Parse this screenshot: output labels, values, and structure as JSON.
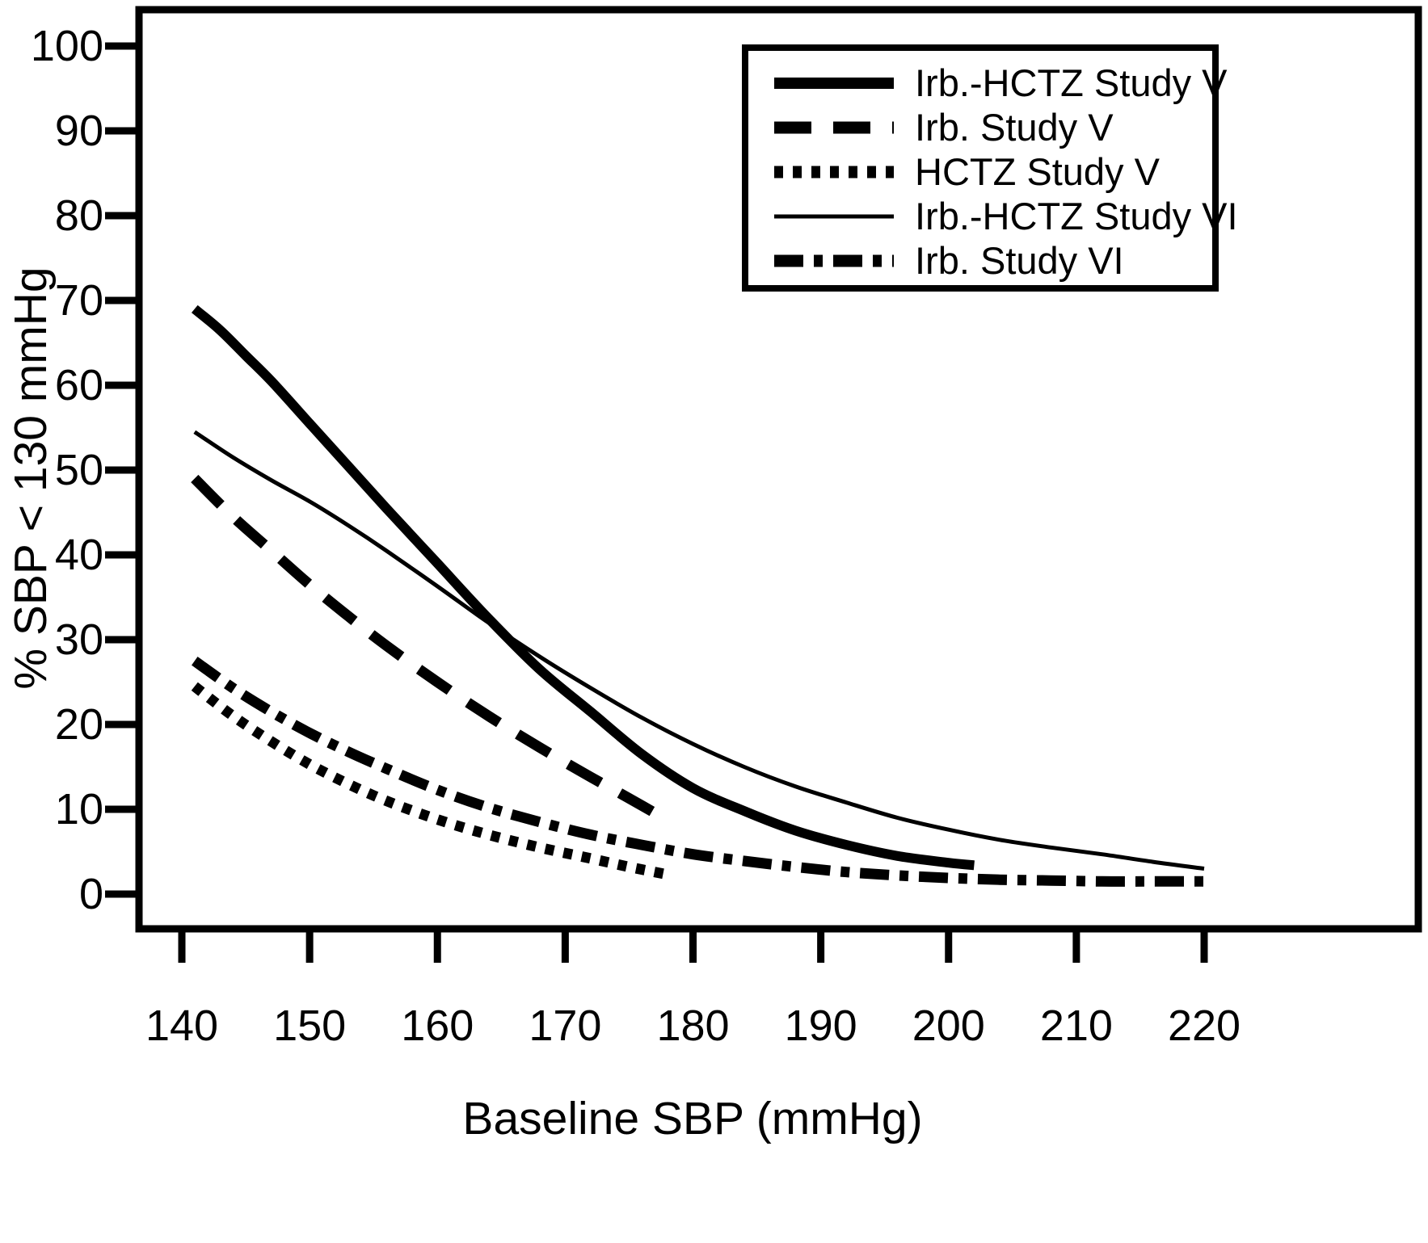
{
  "chart_data": {
    "type": "line",
    "title": "",
    "xlabel": "Baseline SBP (mmHg)",
    "ylabel": "% SBP < 130 mmHg",
    "xlim": [
      140,
      220
    ],
    "ylim": [
      0,
      100
    ],
    "x_ticks": [
      140,
      150,
      160,
      170,
      180,
      190,
      200,
      210,
      220
    ],
    "y_ticks": [
      0,
      10,
      20,
      30,
      40,
      50,
      60,
      70,
      80,
      90,
      100
    ],
    "grid": false,
    "legend_position": "top-right",
    "line_color": "#000000",
    "series": [
      {
        "name": "Irb.-HCTZ Study V",
        "style": "solid-thick",
        "x": [
          141,
          143,
          145,
          147,
          150,
          153,
          156,
          160,
          164,
          168,
          172,
          176,
          180,
          184,
          188,
          192,
          196,
          200,
          202
        ],
        "y": [
          69,
          66.5,
          63.5,
          60.5,
          55.5,
          50.5,
          45.5,
          39,
          32.5,
          26.5,
          21.5,
          16.5,
          12.5,
          9.8,
          7.5,
          5.8,
          4.5,
          3.7,
          3.4
        ]
      },
      {
        "name": "Irb. Study V",
        "style": "dashed-thick",
        "x": [
          141,
          144,
          147,
          150,
          153,
          156,
          160,
          164,
          168,
          172,
          175,
          178
        ],
        "y": [
          49,
          44.5,
          40.5,
          36.5,
          32.8,
          29.3,
          25,
          21,
          17.3,
          13.8,
          11.3,
          8.7
        ]
      },
      {
        "name": "HCTZ Study V",
        "style": "dotted-thick",
        "x": [
          141,
          144,
          147,
          150,
          153,
          156,
          160,
          164,
          168,
          172,
          175,
          178
        ],
        "y": [
          24.5,
          21,
          18,
          15.3,
          13,
          11,
          8.8,
          7,
          5.5,
          4.2,
          3.2,
          2.3
        ]
      },
      {
        "name": "Irb.-HCTZ Study VI",
        "style": "solid-thin",
        "x": [
          141,
          144,
          147,
          150,
          153,
          156,
          160,
          164,
          168,
          172,
          176,
          180,
          184,
          188,
          192,
          196,
          200,
          204,
          208,
          212,
          216,
          220
        ],
        "y": [
          54.5,
          51.5,
          48.8,
          46.3,
          43.5,
          40.5,
          36.3,
          32,
          28,
          24.3,
          20.8,
          17.7,
          15,
          12.7,
          10.8,
          9,
          7.6,
          6.4,
          5.5,
          4.7,
          3.8,
          3
        ]
      },
      {
        "name": "Irb. Study VI",
        "style": "dashdot-thick",
        "x": [
          141,
          144,
          147,
          150,
          153,
          156,
          160,
          164,
          168,
          172,
          176,
          180,
          184,
          188,
          192,
          196,
          200,
          204,
          208,
          212,
          216,
          220
        ],
        "y": [
          27.5,
          24.3,
          21.5,
          19,
          16.8,
          14.8,
          12.3,
          10.2,
          8.5,
          7,
          5.8,
          4.7,
          3.9,
          3.2,
          2.6,
          2.2,
          1.9,
          1.7,
          1.6,
          1.5,
          1.5,
          1.5
        ]
      }
    ]
  }
}
